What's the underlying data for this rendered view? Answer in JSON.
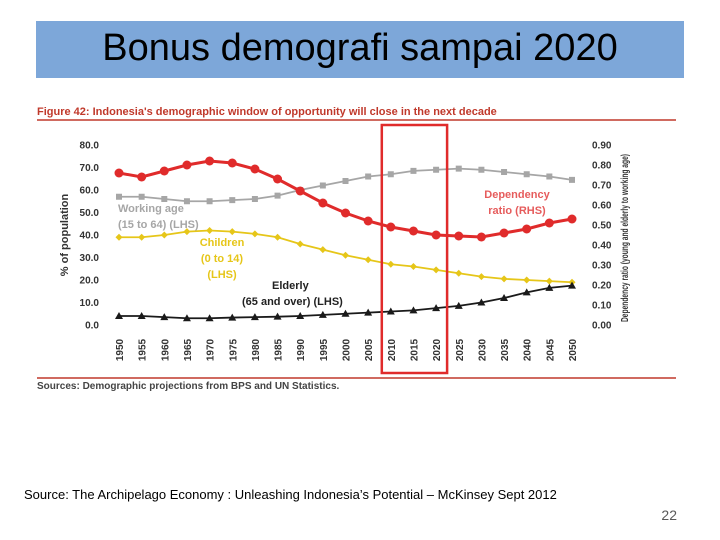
{
  "slide": {
    "title": "Bonus demografi sampai 2020",
    "source": "Source: The Archipelago Economy : Unleashing Indonesia’s Potential – McKinsey Sept 2012",
    "page_number": "22"
  },
  "colors": {
    "title_bg": "#7da7d9",
    "figure_title": "#c0392b",
    "working_age": "#a6a6a6",
    "children": "#e6c619",
    "elderly": "#1a1a1a",
    "dependency": "#e02b2b",
    "highlight": "#e02b2b",
    "rule": "#c0392b"
  },
  "chart_data": {
    "type": "line",
    "figure_title": "Figure 42: Indonesia's demographic window of opportunity will close in the next decade",
    "sources": "Sources: Demographic projections from BPS and UN Statistics.",
    "xlabel": "",
    "ylabel": "% of population",
    "y2label": "Dependency ratio (young and elderly to working age)",
    "categories": [
      "1950",
      "1955",
      "1960",
      "1965",
      "1970",
      "1975",
      "1980",
      "1985",
      "1990",
      "1995",
      "2000",
      "2005",
      "2010",
      "2015",
      "2020",
      "2025",
      "2030",
      "2035",
      "2040",
      "2045",
      "2050"
    ],
    "ylim": [
      0,
      80
    ],
    "y_ticks": [
      "0.0",
      "10.0",
      "20.0",
      "30.0",
      "40.0",
      "50.0",
      "60.0",
      "70.0",
      "80.0"
    ],
    "y2lim": [
      0,
      0.9
    ],
    "y2_ticks": [
      "0.00",
      "0.10",
      "0.20",
      "0.30",
      "0.40",
      "0.50",
      "0.60",
      "0.70",
      "0.80",
      "0.90"
    ],
    "highlight_range": [
      "2010",
      "2020"
    ],
    "series": [
      {
        "name": "Working age (15 to 64) (LHS)",
        "label_lines": [
          "Working age",
          "(15 to 64) (LHS)"
        ],
        "axis": "left",
        "marker": "square",
        "values": [
          57,
          57,
          56,
          55,
          55,
          55.5,
          56,
          57.5,
          60,
          62,
          64,
          66,
          67,
          68.5,
          69,
          69.5,
          69,
          68,
          67,
          66,
          64.5
        ]
      },
      {
        "name": "Children (0 to 14) (LHS)",
        "label_lines": [
          "Children",
          "(0 to 14)",
          "(LHS)"
        ],
        "axis": "left",
        "marker": "diamond",
        "values": [
          39,
          39,
          40,
          41.5,
          42,
          41.5,
          40.5,
          39,
          36,
          33.5,
          31,
          29,
          27,
          26,
          24.5,
          23,
          21.5,
          20.5,
          20,
          19.5,
          19
        ]
      },
      {
        "name": "Elderly (65 and over) (LHS)",
        "label_lines": [
          "Elderly",
          "(65 and over) (LHS)"
        ],
        "axis": "left",
        "marker": "triangle",
        "values": [
          4,
          4,
          3.5,
          3,
          3,
          3.3,
          3.5,
          3.7,
          4,
          4.5,
          5,
          5.5,
          6,
          6.5,
          7.5,
          8.5,
          10,
          12,
          14.5,
          16.5,
          17.5
        ]
      },
      {
        "name": "Dependency ratio (RHS)",
        "label_lines": [
          "Dependency",
          "ratio (RHS)"
        ],
        "axis": "right",
        "marker": "circle",
        "values": [
          0.76,
          0.74,
          0.77,
          0.8,
          0.82,
          0.81,
          0.78,
          0.73,
          0.67,
          0.61,
          0.56,
          0.52,
          0.49,
          0.47,
          0.45,
          0.445,
          0.44,
          0.46,
          0.48,
          0.51,
          0.53
        ]
      }
    ]
  }
}
